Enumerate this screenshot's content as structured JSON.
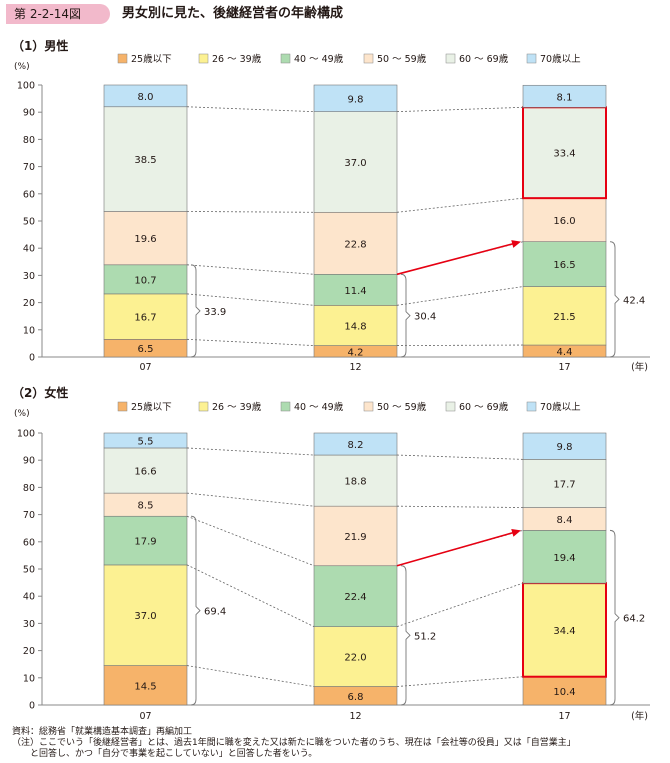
{
  "header": {
    "figure_number": "第 2-2-14図",
    "title": "男女別に見た、後継経営者の年齢構成"
  },
  "colors": {
    "series": [
      "#f6b36a",
      "#fcf192",
      "#addbb0",
      "#fde5cc",
      "#e9f1e6",
      "#bfe2f6"
    ],
    "highlight": "#e60012",
    "connector": "#666666"
  },
  "chart_data": [
    {
      "type": "bar",
      "stacked": true,
      "panel_label": "（1）男性",
      "ylabel": "(%)",
      "xlabel": "(年)",
      "ylim": [
        0,
        100
      ],
      "yticks": [
        0,
        10,
        20,
        30,
        40,
        50,
        60,
        70,
        80,
        90,
        100
      ],
      "categories": [
        "07",
        "12",
        "17"
      ],
      "legend_position": "top",
      "series": [
        {
          "name": "25歳以下",
          "values": [
            6.5,
            4.2,
            4.4
          ]
        },
        {
          "name": "26 ～ 39歳",
          "values": [
            16.7,
            14.8,
            21.5
          ]
        },
        {
          "name": "40 ～ 49歳",
          "values": [
            10.7,
            11.4,
            16.5
          ]
        },
        {
          "name": "50 ～ 59歳",
          "values": [
            19.6,
            22.8,
            16.0
          ]
        },
        {
          "name": "60 ～ 69歳",
          "values": [
            38.5,
            37.0,
            33.4
          ]
        },
        {
          "name": "70歳以上",
          "values": [
            8.0,
            9.8,
            8.1
          ]
        }
      ],
      "bracket_totals": [
        "33.9",
        "30.4",
        "42.4"
      ],
      "highlighted": [
        {
          "category": "17",
          "series": "60 ～ 69歳"
        }
      ]
    },
    {
      "type": "bar",
      "stacked": true,
      "panel_label": "（2）女性",
      "ylabel": "(%)",
      "xlabel": "(年)",
      "ylim": [
        0,
        100
      ],
      "yticks": [
        0,
        10,
        20,
        30,
        40,
        50,
        60,
        70,
        80,
        90,
        100
      ],
      "categories": [
        "07",
        "12",
        "17"
      ],
      "legend_position": "top",
      "series": [
        {
          "name": "25歳以下",
          "values": [
            14.5,
            6.8,
            10.4
          ]
        },
        {
          "name": "26 ～ 39歳",
          "values": [
            37.0,
            22.0,
            34.4
          ]
        },
        {
          "name": "40 ～ 49歳",
          "values": [
            17.9,
            22.4,
            19.4
          ]
        },
        {
          "name": "50 ～ 59歳",
          "values": [
            8.5,
            21.9,
            8.4
          ]
        },
        {
          "name": "60 ～ 69歳",
          "values": [
            16.6,
            18.8,
            17.7
          ]
        },
        {
          "name": "70歳以上",
          "values": [
            5.5,
            8.2,
            9.8
          ]
        }
      ],
      "bracket_totals": [
        "69.4",
        "51.2",
        "64.2"
      ],
      "highlighted": [
        {
          "category": "17",
          "series": "26 ～ 39歳"
        }
      ]
    }
  ],
  "notes": {
    "source": "資料：総務省「就業構造基本調査」再編加工",
    "note_line1": "（注）ここでいう「後継経営者」とは、過去1年間に職を変えた又は新たに職をついた者のうち、現在は「会社等の役員」又は「自営業主」",
    "note_line2": "　　と回答し、かつ「自分で事業を起こしていない」と回答した者をいう。"
  }
}
